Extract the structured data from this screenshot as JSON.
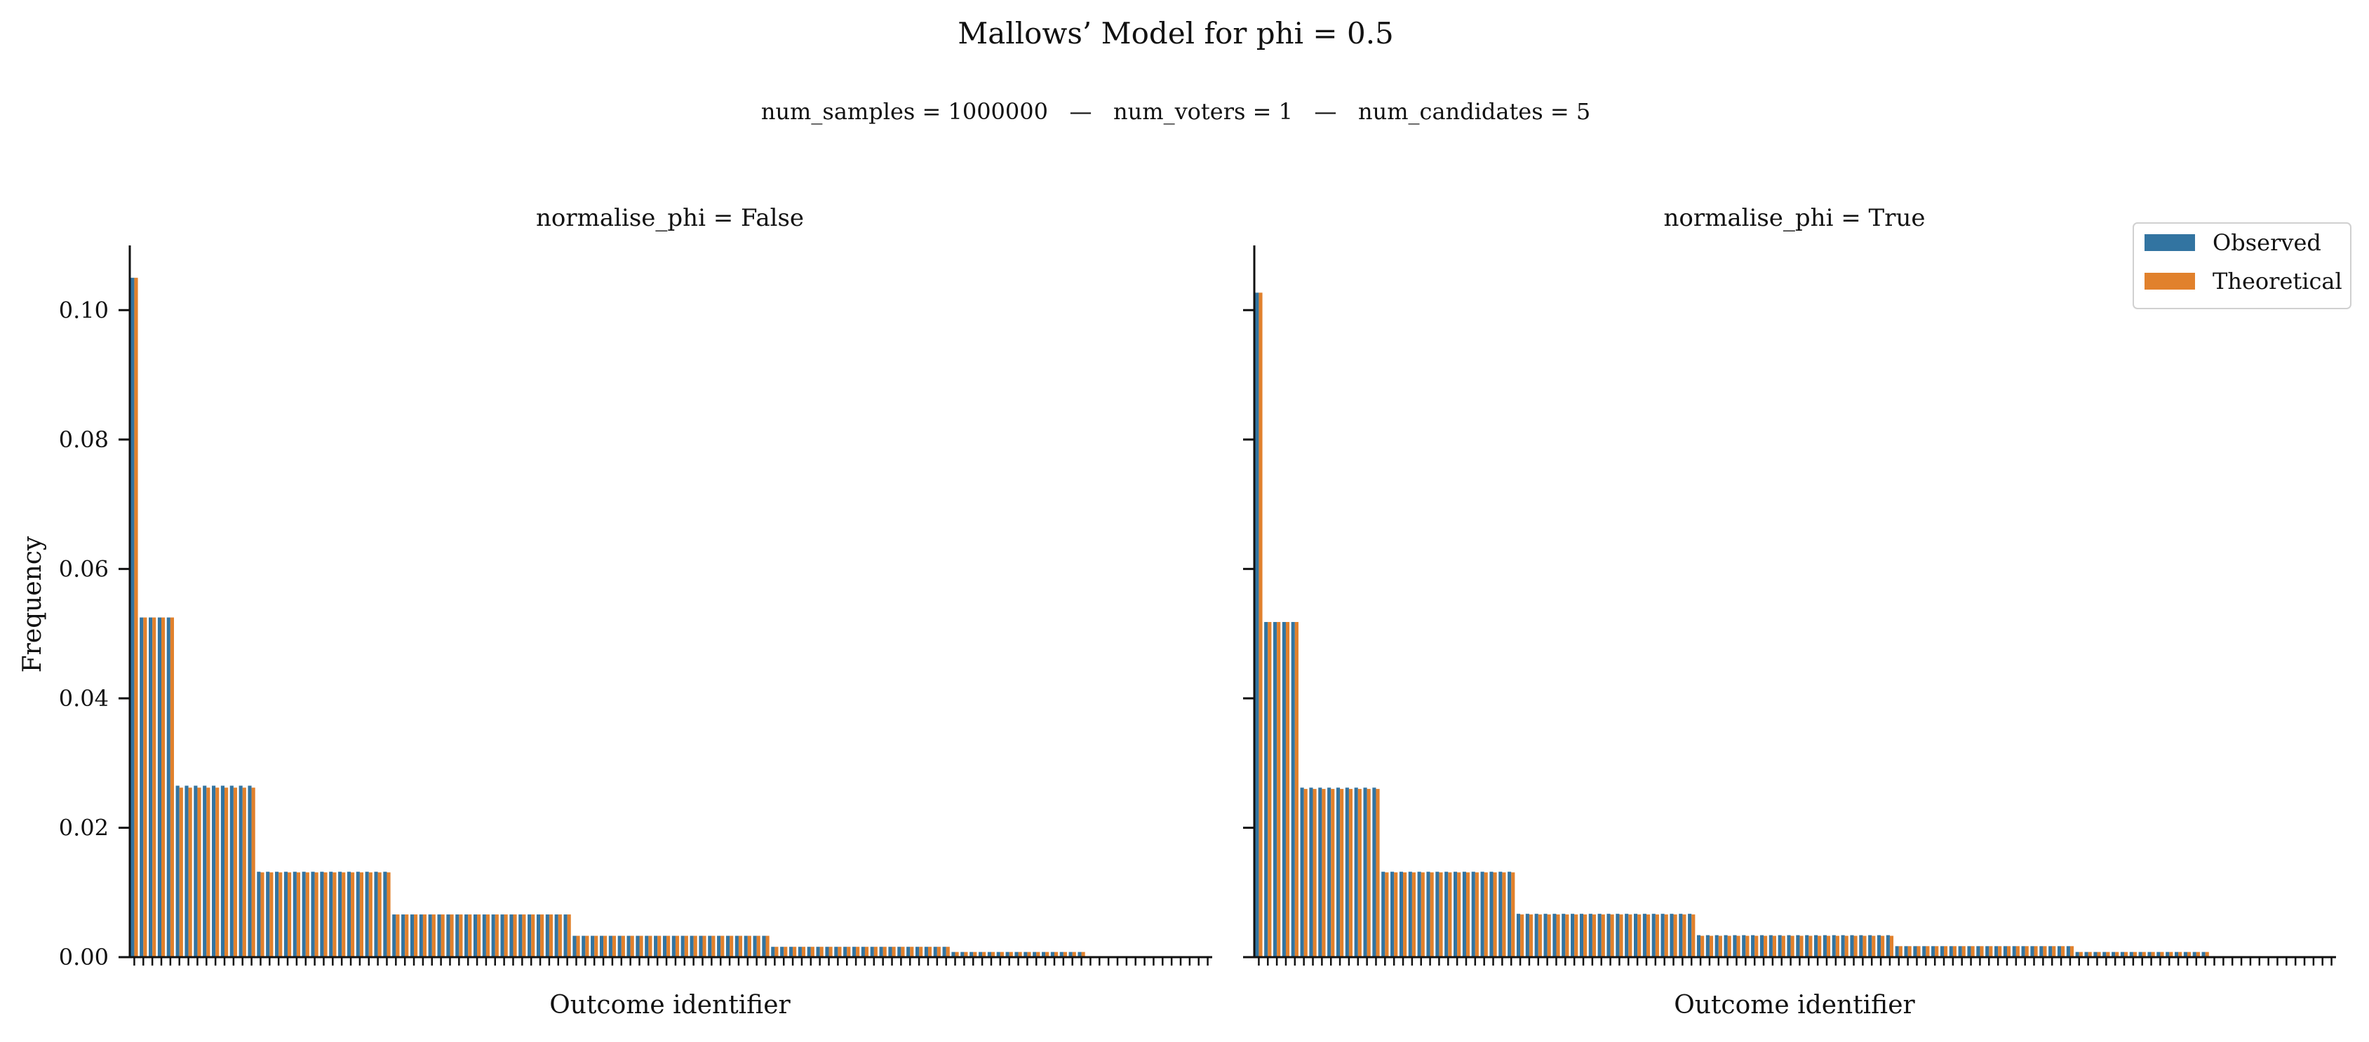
{
  "figure": {
    "title": "Mallows’ Model for phi = 0.5",
    "subtitle": "num_samples = 1000000   —   num_voters = 1   —   num_candidates = 5"
  },
  "legend": {
    "placement": "top-right",
    "entries": [
      {
        "label": "Observed",
        "color": "#3274a1"
      },
      {
        "label": "Theoretical",
        "color": "#e1812c"
      }
    ]
  },
  "chart_data": [
    {
      "type": "bar",
      "title": "normalise_phi = False",
      "xlabel": "Outcome identifier",
      "ylabel": "Frequency",
      "ylim": [
        0,
        0.11
      ],
      "yticks": [
        "0.00",
        "0.02",
        "0.04",
        "0.06",
        "0.08",
        "0.10"
      ],
      "num_categories": 120,
      "grid": false,
      "groups": [
        {
          "count": 1,
          "observed": 0.105,
          "theoretical": 0.105
        },
        {
          "count": 4,
          "observed": 0.0525,
          "theoretical": 0.0525
        },
        {
          "count": 9,
          "observed": 0.0265,
          "theoretical": 0.0262
        },
        {
          "count": 15,
          "observed": 0.0132,
          "theoretical": 0.0131
        },
        {
          "count": 20,
          "observed": 0.0066,
          "theoretical": 0.0066
        },
        {
          "count": 22,
          "observed": 0.0033,
          "theoretical": 0.0033
        },
        {
          "count": 20,
          "observed": 0.0016,
          "theoretical": 0.0016
        },
        {
          "count": 15,
          "observed": 0.0008,
          "theoretical": 0.0008
        },
        {
          "count": 14,
          "observed": 0.0,
          "theoretical": 0.0
        }
      ]
    },
    {
      "type": "bar",
      "title": "normalise_phi = True",
      "xlabel": "Outcome identifier",
      "ylabel": "",
      "ylim": [
        0,
        0.11
      ],
      "yticks": [
        "0.00",
        "0.02",
        "0.04",
        "0.06",
        "0.08",
        "0.10"
      ],
      "num_categories": 120,
      "grid": false,
      "groups": [
        {
          "count": 1,
          "observed": 0.1027,
          "theoretical": 0.1027
        },
        {
          "count": 4,
          "observed": 0.0518,
          "theoretical": 0.0518
        },
        {
          "count": 9,
          "observed": 0.0262,
          "theoretical": 0.026
        },
        {
          "count": 15,
          "observed": 0.0132,
          "theoretical": 0.0131
        },
        {
          "count": 20,
          "observed": 0.0067,
          "theoretical": 0.0066
        },
        {
          "count": 22,
          "observed": 0.0034,
          "theoretical": 0.0033
        },
        {
          "count": 20,
          "observed": 0.0017,
          "theoretical": 0.0017
        },
        {
          "count": 15,
          "observed": 0.0008,
          "theoretical": 0.0008
        },
        {
          "count": 14,
          "observed": 0.0,
          "theoretical": 0.0
        }
      ]
    }
  ]
}
